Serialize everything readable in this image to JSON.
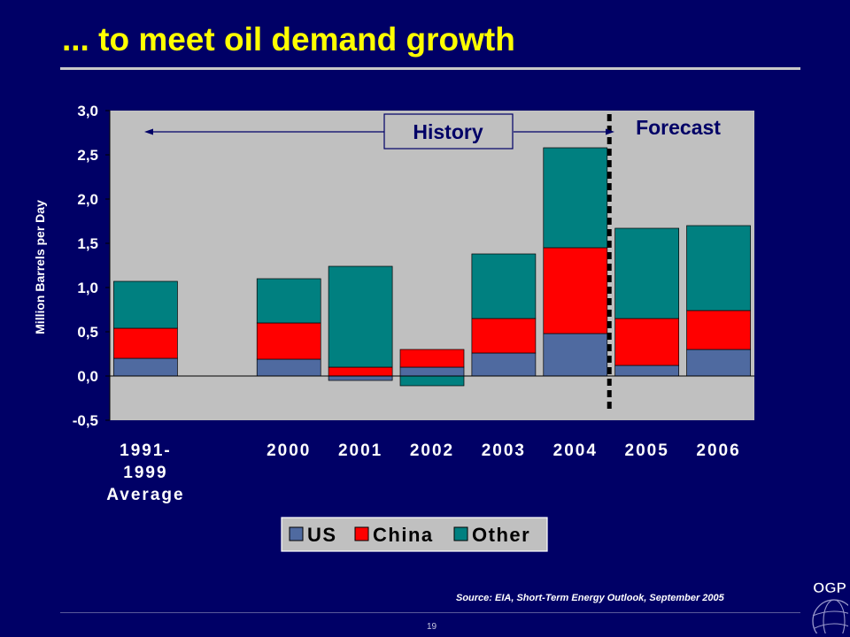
{
  "slide": {
    "title": "... to meet oil demand growth",
    "source": "Source: EIA, Short-Term Energy Outlook, September  2005",
    "page_number": "19",
    "logo_text": "OGP"
  },
  "chart_data": {
    "type": "bar",
    "stacked": true,
    "categories": [
      [
        "1991-",
        "1999",
        "Average"
      ],
      [],
      [
        "2000"
      ],
      [
        "2001"
      ],
      [
        "2002"
      ],
      [
        "2003"
      ],
      [
        "2004"
      ],
      [
        "2005"
      ],
      [
        "2006"
      ]
    ],
    "series": [
      {
        "name": "US",
        "color": "#4F6AA0",
        "values": [
          0.2,
          null,
          0.19,
          -0.05,
          0.1,
          0.26,
          0.48,
          0.12,
          0.3
        ]
      },
      {
        "name": "China",
        "color": "#FF0000",
        "values": [
          0.34,
          null,
          0.41,
          0.1,
          0.2,
          0.39,
          0.97,
          0.53,
          0.44
        ]
      },
      {
        "name": "Other",
        "color": "#008080",
        "values": [
          0.53,
          null,
          0.5,
          1.14,
          -0.11,
          0.73,
          1.13,
          1.02,
          0.96
        ]
      }
    ],
    "ylabel": "Million Barrels per Day",
    "ylim": [
      -0.5,
      3.0
    ],
    "yticks": [
      "-0,5",
      "0,0",
      "0,5",
      "1,0",
      "1,5",
      "2,0",
      "2,5",
      "3,0"
    ],
    "ytick_values": [
      -0.5,
      0,
      0.5,
      1.0,
      1.5,
      2.0,
      2.5,
      3.0
    ],
    "plot_background": "#C0C0C0",
    "grid": false,
    "legend": "bottom-center",
    "annotations": {
      "history": "History",
      "forecast": "Forecast"
    }
  }
}
